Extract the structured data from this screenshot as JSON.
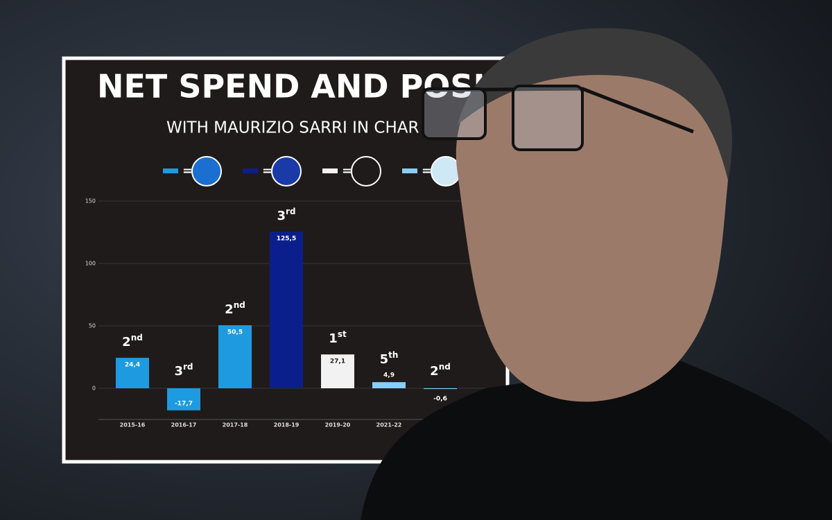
{
  "chart_data": {
    "type": "bar",
    "title": "NET SPEND AND POSITI",
    "subtitle": "WITH MAURIZIO SARRI IN CHAR",
    "categories": [
      "2015-16",
      "2016-17",
      "2017-18",
      "2018-19",
      "2019-20",
      "2021-22",
      null
    ],
    "values": [
      24.4,
      -17.7,
      50.5,
      125.5,
      27.1,
      4.9,
      -0.6
    ],
    "value_labels": [
      "24,4",
      "-17,7",
      "50,5",
      "125,5",
      "27,1",
      "4,9",
      "-0,6"
    ],
    "colors": [
      "#1e9be0",
      "#1e9be0",
      "#1e9be0",
      "#0b1f8c",
      "#f2f2f2",
      "#87cefa",
      "#87cefa"
    ],
    "position_numbers": [
      2,
      3,
      2,
      3,
      1,
      5,
      2
    ],
    "position_suffixes": [
      "nd",
      "rd",
      "nd",
      "rd",
      "st",
      "th",
      "nd"
    ],
    "legend_colors": [
      "#1e9be0",
      "#0b1f8c",
      "#f2f2f2",
      "#87cefa"
    ],
    "legend_separator": "=",
    "ylim": [
      -25,
      150
    ],
    "yticks": [
      0,
      50,
      100,
      150
    ],
    "grid": true
  }
}
